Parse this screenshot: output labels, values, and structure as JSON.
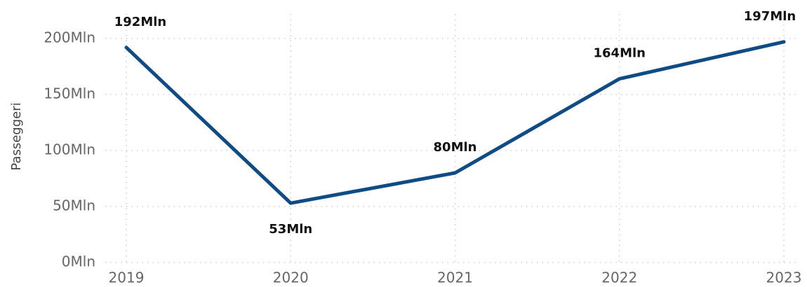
{
  "chart_data": {
    "type": "line",
    "y_label": "Passeggeri",
    "categories": [
      "2019",
      "2020",
      "2021",
      "2022",
      "2023"
    ],
    "series": [
      {
        "name": "Passeggeri",
        "color": "#0f4c85",
        "values": [
          192,
          53,
          80,
          164,
          197
        ],
        "value_labels": [
          "192Mln",
          "53Mln",
          "80Mln",
          "164Mln",
          "197Mln"
        ]
      }
    ],
    "ylim": [
      0,
      200
    ],
    "yticks": [
      {
        "value": 0,
        "label": "0Mln"
      },
      {
        "value": 50,
        "label": "50Mln"
      },
      {
        "value": 100,
        "label": "100Mln"
      },
      {
        "value": 150,
        "label": "150Mln"
      },
      {
        "value": 200,
        "label": "200Mln"
      }
    ],
    "grid": true
  }
}
